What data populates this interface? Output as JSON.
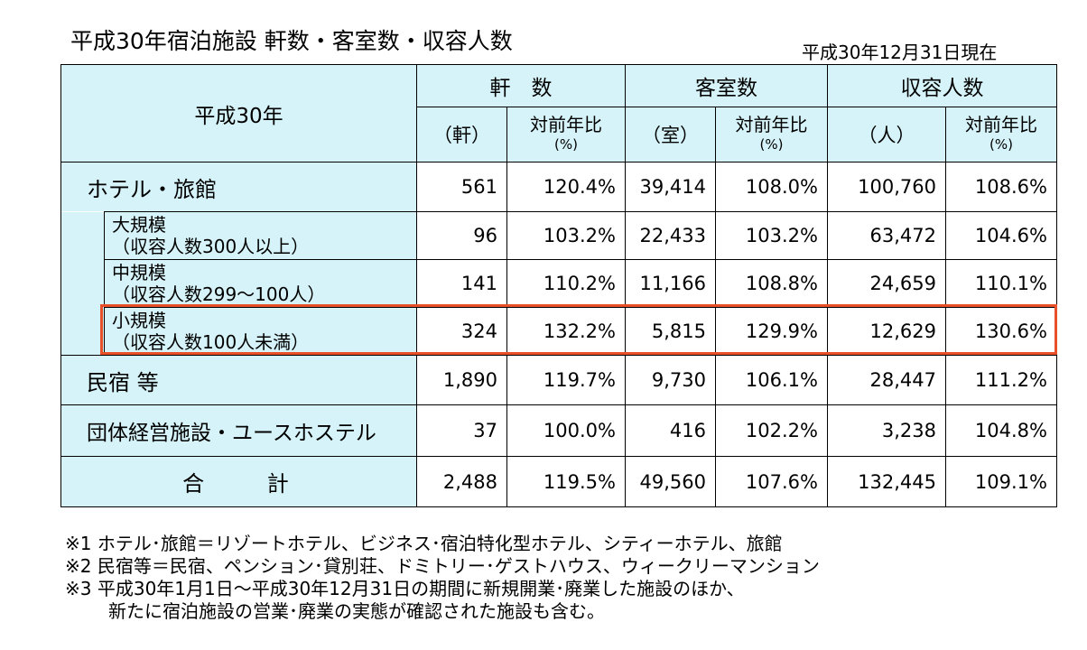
{
  "title": "平成30年宿泊施設 軒数・客室数・収容人数",
  "as_of": "平成30年12月31日現在",
  "header": {
    "year_label": "平成30年",
    "groups": [
      "軒　数",
      "客室数",
      "収容人数"
    ],
    "units": [
      "（軒）",
      "（室）",
      "（人）"
    ],
    "ratio_label": "対前年比",
    "ratio_unit": "(%)"
  },
  "rows": [
    {
      "label1": "ホテル・旅館",
      "label2": "",
      "values": [
        "561",
        "120.4%",
        "39,414",
        "108.0%",
        "100,760",
        "108.6%"
      ]
    },
    {
      "label1": "大規模",
      "label2": "（収容人数300人以上）",
      "values": [
        "96",
        "103.2%",
        "22,433",
        "103.2%",
        "63,472",
        "104.6%"
      ]
    },
    {
      "label1": "中規模",
      "label2": "（収容人数299～100人）",
      "values": [
        "141",
        "110.2%",
        "11,166",
        "108.8%",
        "24,659",
        "110.1%"
      ]
    },
    {
      "label1": "小規模",
      "label2": "（収容人数100人未満）",
      "values": [
        "324",
        "132.2%",
        "5,815",
        "129.9%",
        "12,629",
        "130.6%"
      ]
    },
    {
      "label1": "民宿 等",
      "label2": "",
      "values": [
        "1,890",
        "119.7%",
        "9,730",
        "106.1%",
        "28,447",
        "111.2%"
      ]
    },
    {
      "label1": "団体経営施設・ユースホステル",
      "label2": "",
      "values": [
        "37",
        "100.0%",
        "416",
        "102.2%",
        "3,238",
        "104.8%"
      ]
    },
    {
      "label1": "合　　計",
      "label2": "",
      "values": [
        "2,488",
        "119.5%",
        "49,560",
        "107.6%",
        "132,445",
        "109.1%"
      ]
    }
  ],
  "notes": [
    "※1 ホテル･旅館＝リゾートホテル、ビジネス･宿泊特化型ホテル、シティーホテル、旅館",
    "※2 民宿等＝民宿、ペンション･貸別荘、ドミトリー･ゲストハウス、ウィークリーマンション",
    "※3 平成30年1月1日～平成30年12月31日の期間に新規開業･廃業した施設のほか、",
    "新たに宿泊施設の営業･廃業の実態が確認された施設も含む。"
  ],
  "colors": {
    "header_bg": "#d5f3f8",
    "highlight": "#e8502a"
  }
}
